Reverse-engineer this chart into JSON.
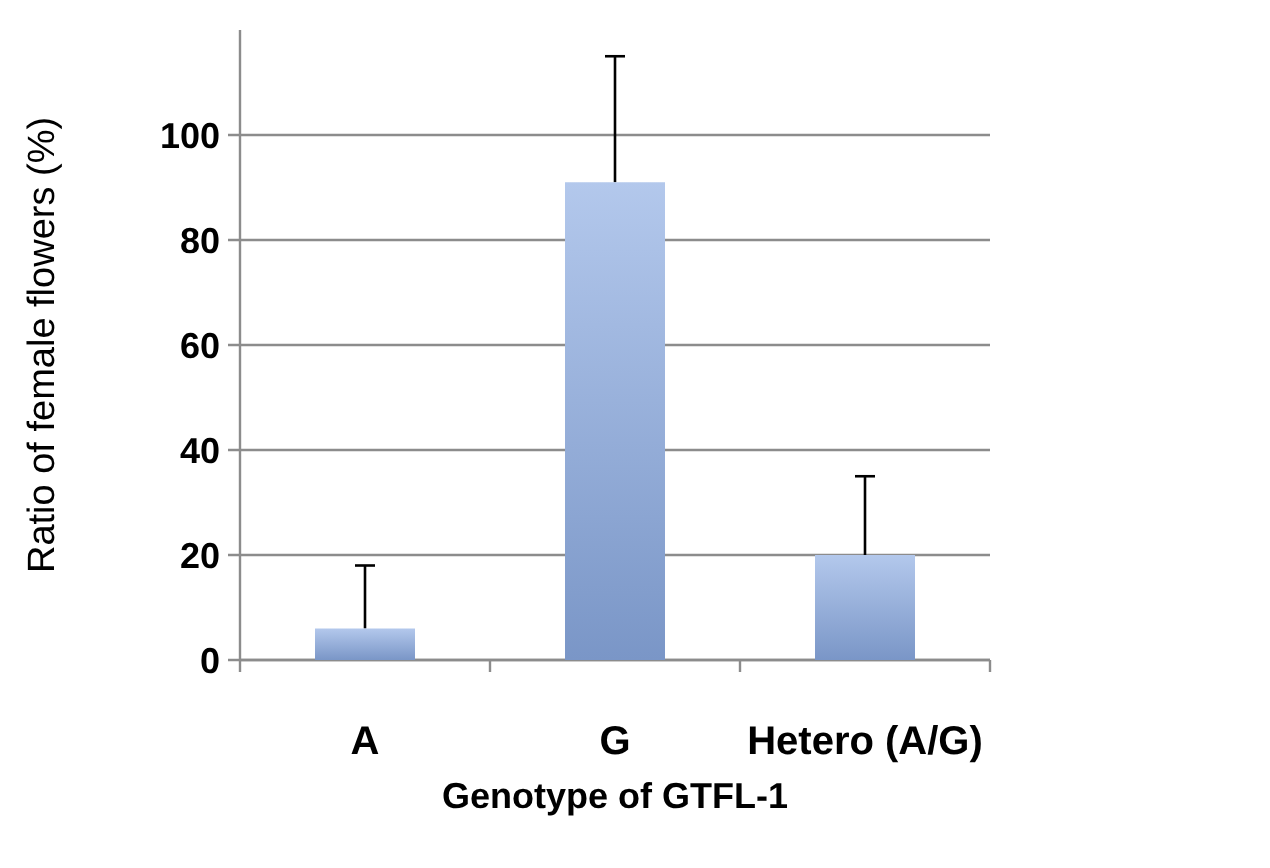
{
  "chart_data": {
    "type": "bar",
    "xlabel": "Genotype of GTFL-1",
    "ylabel": "Ratio of female flowers (%)",
    "categories": [
      "A",
      "G",
      "Hetero (A/G)"
    ],
    "values": [
      6,
      91,
      20
    ],
    "errors": [
      [
        6,
        18
      ],
      [
        91,
        115
      ],
      [
        20,
        35
      ]
    ],
    "color": "#8aaae2",
    "ylim": [
      0,
      120
    ],
    "yticks": [
      0,
      20,
      40,
      60,
      80,
      100
    ],
    "grid": "y"
  }
}
